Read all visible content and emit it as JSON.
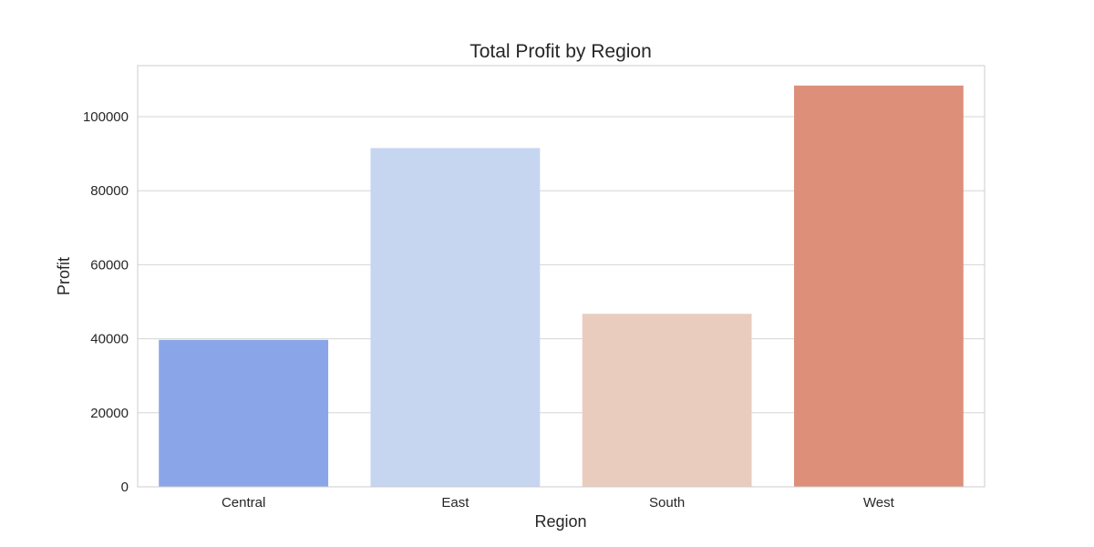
{
  "chart_data": {
    "type": "bar",
    "title": "Total Profit by Region",
    "xlabel": "Region",
    "ylabel": "Profit",
    "categories": [
      "Central",
      "East",
      "South",
      "West"
    ],
    "values": [
      39706,
      91523,
      46749,
      108418
    ],
    "colors": [
      "#8aa6e8",
      "#c6d5f0",
      "#eaccbe",
      "#dd8f79"
    ],
    "ylim": [
      0,
      113800
    ],
    "yticks": [
      0,
      20000,
      40000,
      60000,
      80000,
      100000
    ],
    "ytick_labels": [
      "0",
      "20000",
      "40000",
      "60000",
      "80000",
      "100000"
    ],
    "grid": true,
    "grid_axis": "y",
    "legend": false,
    "style": {
      "grid_color": "#d5d5d5",
      "frame_color": "#cccccc",
      "text_color": "#262626",
      "background": "#ffffff"
    }
  }
}
